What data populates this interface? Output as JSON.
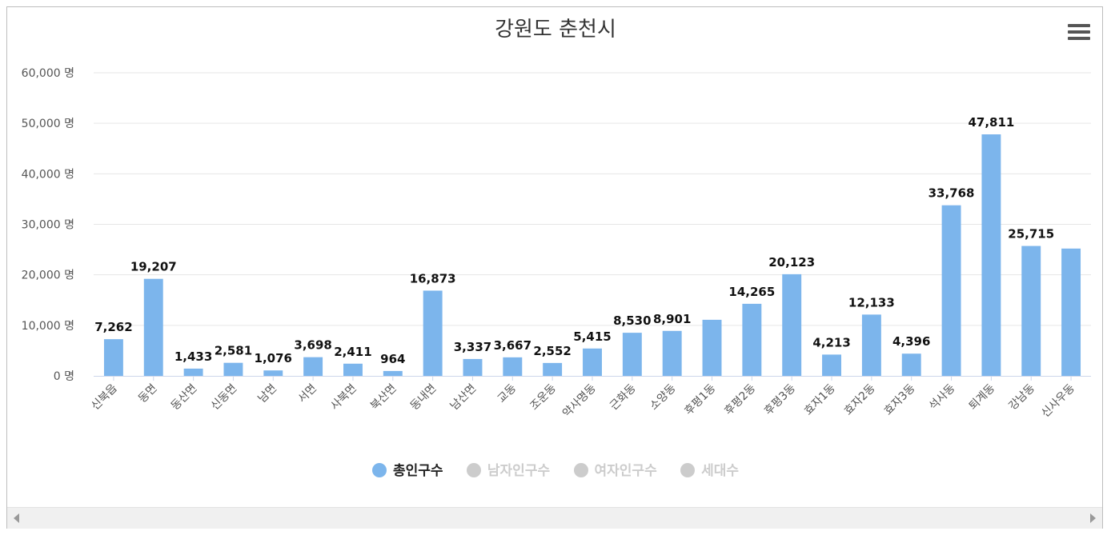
{
  "chart_data": {
    "type": "bar",
    "title": "강원도 춘천시",
    "categories": [
      "신북읍",
      "동면",
      "동산면",
      "신동면",
      "남면",
      "서면",
      "사북면",
      "북산면",
      "동내면",
      "남산면",
      "교동",
      "조운동",
      "약사명동",
      "근화동",
      "소양동",
      "후평1동",
      "후평2동",
      "후평3동",
      "효자1동",
      "효자2동",
      "효자3동",
      "석사동",
      "퇴계동",
      "강남동",
      "신사우동"
    ],
    "series": [
      {
        "name": "총인구수",
        "color": "#7cb5ec",
        "values": [
          7262,
          19207,
          1433,
          2581,
          1076,
          3698,
          2411,
          964,
          16873,
          3337,
          3667,
          2552,
          5415,
          8530,
          8901,
          11100,
          14265,
          20123,
          4213,
          12133,
          4396,
          33768,
          47811,
          25715,
          25200
        ],
        "labels": [
          "7,262",
          "19,207",
          "1,433",
          "2,581",
          "1,076",
          "3,698",
          "2,411",
          "964",
          "16,873",
          "3,337",
          "3,667",
          "2,552",
          "5,415",
          "8,530",
          "8,901",
          "",
          "14,265",
          "20,123",
          "4,213",
          "12,133",
          "4,396",
          "33,768",
          "47,811",
          "25,715",
          ""
        ]
      }
    ],
    "ylim": [
      0,
      60000
    ],
    "yticks": [
      {
        "value": 0,
        "label": "0 명"
      },
      {
        "value": 10000,
        "label": "10,000 명"
      },
      {
        "value": 20000,
        "label": "20,000 명"
      },
      {
        "value": 30000,
        "label": "30,000 명"
      },
      {
        "value": 40000,
        "label": "40,000 명"
      },
      {
        "value": 50000,
        "label": "50,000 명"
      },
      {
        "value": 60000,
        "label": "60,000 명"
      }
    ],
    "grid": true,
    "legend_position": "bottom"
  },
  "legend": [
    {
      "label": "총인구수",
      "color": "#7cb5ec",
      "active": true
    },
    {
      "label": "남자인구수",
      "color": "#cccccc",
      "active": false
    },
    {
      "label": "여자인구수",
      "color": "#cccccc",
      "active": false
    },
    {
      "label": "세대수",
      "color": "#cccccc",
      "active": false
    }
  ],
  "icons": {
    "menu": "hamburger-menu-icon",
    "scroll_left": "arrow-left-icon",
    "scroll_right": "arrow-right-icon"
  }
}
